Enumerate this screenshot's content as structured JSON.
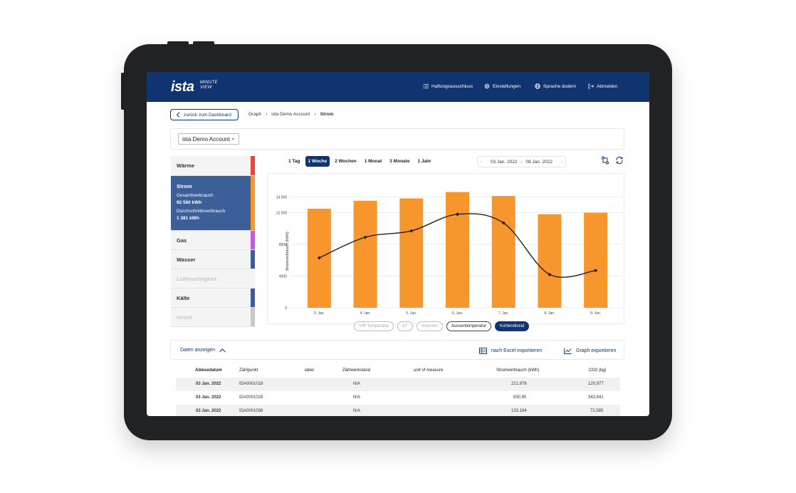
{
  "header": {
    "logo": "ista",
    "logo_sub_line1": "MINUTE",
    "logo_sub_line2": "VIEW",
    "nav": [
      {
        "label": "Haftungsausschluss",
        "icon": "list-icon"
      },
      {
        "label": "Einstellungen",
        "icon": "gear-icon"
      },
      {
        "label": "Sprache ändern",
        "icon": "globe-icon"
      },
      {
        "label": "Abmelden",
        "icon": "logout-icon"
      }
    ]
  },
  "breadcrumb": {
    "back_label": "zurück zum Dashboard",
    "items": [
      "Graph",
      "ista Demo Account",
      "Strom"
    ]
  },
  "account": {
    "selected": "ista Demo Account"
  },
  "sidebar": {
    "items": [
      {
        "label": "Wärme",
        "color": "#e9443f",
        "state": "normal"
      },
      {
        "label": "Strom",
        "color": "#f7962d",
        "state": "active",
        "sub1_label": "Gesamtverbrauch",
        "sub1_value": "92 560 kWh",
        "sub2_label": "Durchschnittsverbrauch",
        "sub2_value": "1 381 kWh"
      },
      {
        "label": "Gas",
        "color": "#c45ce0",
        "state": "normal"
      },
      {
        "label": "Wasser",
        "color": "#3d5f99",
        "state": "normal"
      },
      {
        "label": "Luftfeuchtigkeit",
        "color": "",
        "state": "disabled"
      },
      {
        "label": "Kälte",
        "color": "#3d5f99",
        "state": "normal"
      },
      {
        "label": "Heizöl",
        "color": "#c9c9c9",
        "state": "disabled"
      }
    ]
  },
  "periods": [
    {
      "label": "1 Tag",
      "active": false
    },
    {
      "label": "1 Woche",
      "active": true
    },
    {
      "label": "2 Wochen",
      "active": false
    },
    {
      "label": "1 Monat",
      "active": false
    },
    {
      "label": "3 Monate",
      "active": false
    },
    {
      "label": "1 Jahr",
      "active": false
    }
  ],
  "daterange": {
    "from": "03 Jan. 2022",
    "separator": "-",
    "to": "09 Jan. 2022"
  },
  "chart_data": {
    "type": "bar",
    "title": "",
    "xlabel": "",
    "ylabel": "Stromverbrauch (kWh)",
    "ylim": [
      0,
      16000
    ],
    "yticks": [
      0,
      4000,
      8000,
      12000,
      14000
    ],
    "ytick_labels": [
      "0",
      "4000",
      "8000",
      "12 000",
      "14 000"
    ],
    "grid": true,
    "categories": [
      "3. Jan.",
      "4. Jan.",
      "5. Jan.",
      "6. Jan.",
      "7. Jan.",
      "8. Jan.",
      "9. Jan."
    ],
    "series": [
      {
        "type": "bar",
        "color": "#f7962d",
        "values": [
          12500,
          13500,
          13800,
          14600,
          14100,
          11800,
          12000
        ]
      },
      {
        "type": "line",
        "color": "#222222",
        "values": [
          6300,
          8900,
          9700,
          11800,
          10700,
          4200,
          4700
        ]
      }
    ]
  },
  "legend_chips": [
    {
      "label": "V/R Temperatur",
      "state": "off"
    },
    {
      "label": "ΔT",
      "state": "off"
    },
    {
      "label": "Volumen",
      "state": "off"
    },
    {
      "label": "Aussentemperatur",
      "state": "on"
    },
    {
      "label": "Kohlendioxid",
      "state": "dark"
    }
  ],
  "data_section": {
    "toggle_label": "Daten anzeigen",
    "excel_label": "nach Excel exportieren",
    "graph_label": "Graph exportieren"
  },
  "table": {
    "columns": [
      "Ablesedatum",
      "Zählpunkt",
      "label",
      "Zählwerkstand",
      "unit of measure",
      "Stromverbrauch (kWh)",
      "CO2 (kg)"
    ],
    "rows": [
      {
        "date": "03 Jan. 2022",
        "meter": "IDA0001018",
        "label": "",
        "count": "N/A",
        "unit": "",
        "power": "221,976",
        "co2": "120,977"
      },
      {
        "date": "03 Jan. 2022",
        "meter": "IDA0001028",
        "label": "",
        "count": "N/A",
        "unit": "",
        "power": "630,90",
        "co2": "343,841"
      },
      {
        "date": "03 Jan. 2022",
        "meter": "IDA0001038",
        "label": "",
        "count": "N/A",
        "unit": "",
        "power": "133,184",
        "co2": "72,585"
      }
    ]
  }
}
